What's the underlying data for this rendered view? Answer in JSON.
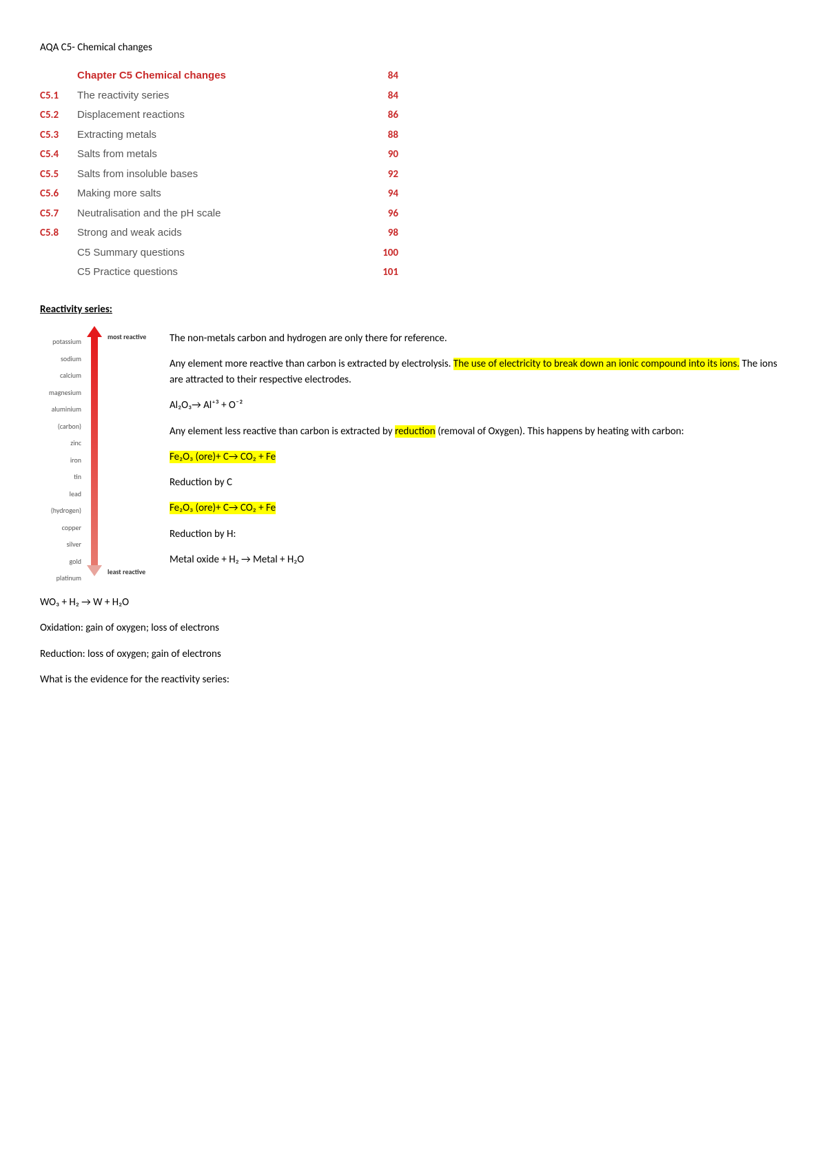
{
  "doc_title": "AQA C5- Chemical changes",
  "toc": {
    "header": {
      "code": "",
      "topic": "Chapter C5 Chemical changes",
      "page": "84"
    },
    "rows": [
      {
        "code": "C5.1",
        "topic": "The reactivity series",
        "page": "84"
      },
      {
        "code": "C5.2",
        "topic": "Displacement reactions",
        "page": "86"
      },
      {
        "code": "C5.3",
        "topic": "Extracting metals",
        "page": "88"
      },
      {
        "code": "C5.4",
        "topic": "Salts from metals",
        "page": "90"
      },
      {
        "code": "C5.5",
        "topic": "Salts from insoluble bases",
        "page": "92"
      },
      {
        "code": "C5.6",
        "topic": "Making more salts",
        "page": "94"
      },
      {
        "code": "C5.7",
        "topic": "Neutralisation and the pH scale",
        "page": "96"
      },
      {
        "code": "C5.8",
        "topic": "Strong and weak acids",
        "page": "98"
      },
      {
        "code": "",
        "topic": "C5 Summary questions",
        "page": "100"
      },
      {
        "code": "",
        "topic": "C5 Practice questions",
        "page": "101"
      }
    ]
  },
  "section_title": "Reactivity series:",
  "reactivity": {
    "most_label": "most reactive",
    "least_label": "least reactive",
    "elements": [
      "potassium",
      "sodium",
      "calcium",
      "magnesium",
      "aluminium",
      "(carbon)",
      "zinc",
      "iron",
      "tin",
      "lead",
      "(hydrogen)",
      "copper",
      "silver",
      "gold",
      "platinum"
    ],
    "arrow_top_color": "#e41a1c",
    "arrow_bottom_color": "#e8a59d"
  },
  "text": {
    "p1": "The non-metals carbon and hydrogen are only there for reference.",
    "p2a": "Any element more reactive than carbon is extracted by electrolysis. ",
    "p2_hl": "The use of electricity to break down an ionic compound into its ions.",
    "p2b": " The ions are attracted to their respective electrodes.",
    "p3": "Al₂O₃→ Al⁺³ + O⁻²",
    "p4a": "Any element less reactive than carbon is extracted by ",
    "p4_hl": "reduction",
    "p4b": " (removal of Oxygen). This happens by heating with carbon:",
    "p5_hl": "Fe₂O₃ (ore)+ C→ CO₂ + Fe",
    "p6": "Reduction by C",
    "p7_hl": "Fe₂O₃ (ore)+ C→ CO₂ + Fe",
    "p8": "Reduction by H:",
    "p9": "Metal oxide + H₂ → Metal + H₂O"
  },
  "below": {
    "b1": "WO₃ + H₂ → W + H₂O",
    "b2": "Oxidation: gain of oxygen; loss of electrons",
    "b3": "Reduction: loss of oxygen; gain of electrons",
    "b4": "What is the evidence for the reactivity series:"
  },
  "colors": {
    "accent_red": "#c92a2a",
    "highlight": "#ffff00",
    "text_gray": "#555555",
    "background": "#ffffff"
  }
}
